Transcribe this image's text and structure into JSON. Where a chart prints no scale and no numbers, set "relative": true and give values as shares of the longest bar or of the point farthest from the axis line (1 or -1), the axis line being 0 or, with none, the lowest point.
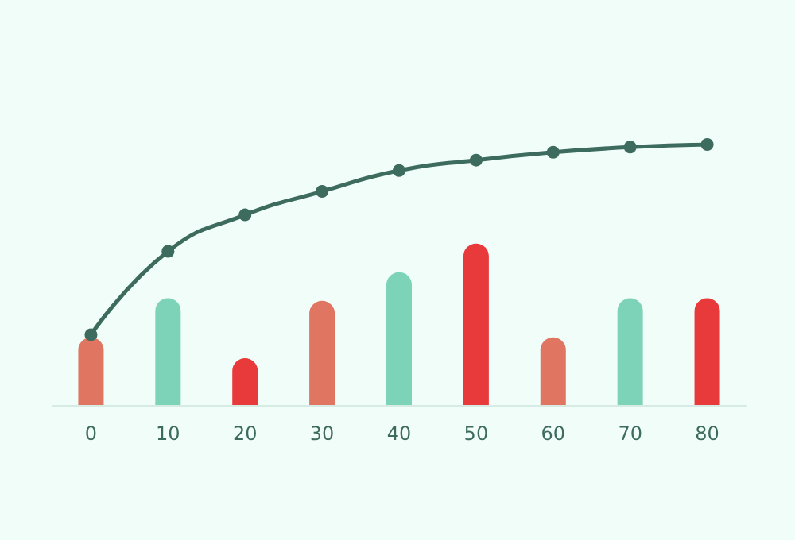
{
  "chart_data": {
    "type": "bar",
    "relative": true,
    "categories": [
      "0",
      "10",
      "20",
      "30",
      "40",
      "50",
      "60",
      "70",
      "80"
    ],
    "series": [
      {
        "colors": [
          "#e07561",
          "#7dd3b8",
          "#e83a3a",
          "#e07561",
          "#7dd3b8",
          "#e83a3a",
          "#e07561",
          "#7dd3b8",
          "#e83a3a"
        ],
        "values": [
          0.26,
          0.41,
          0.18,
          0.4,
          0.51,
          0.62,
          0.26,
          0.41,
          0.41
        ]
      },
      {
        "type": "line",
        "color": "#3d6b5e",
        "values": [
          0.27,
          0.59,
          0.73,
          0.82,
          0.9,
          0.94,
          0.97,
          0.99,
          1.0
        ]
      }
    ],
    "marker": "circle",
    "grid": false
  }
}
